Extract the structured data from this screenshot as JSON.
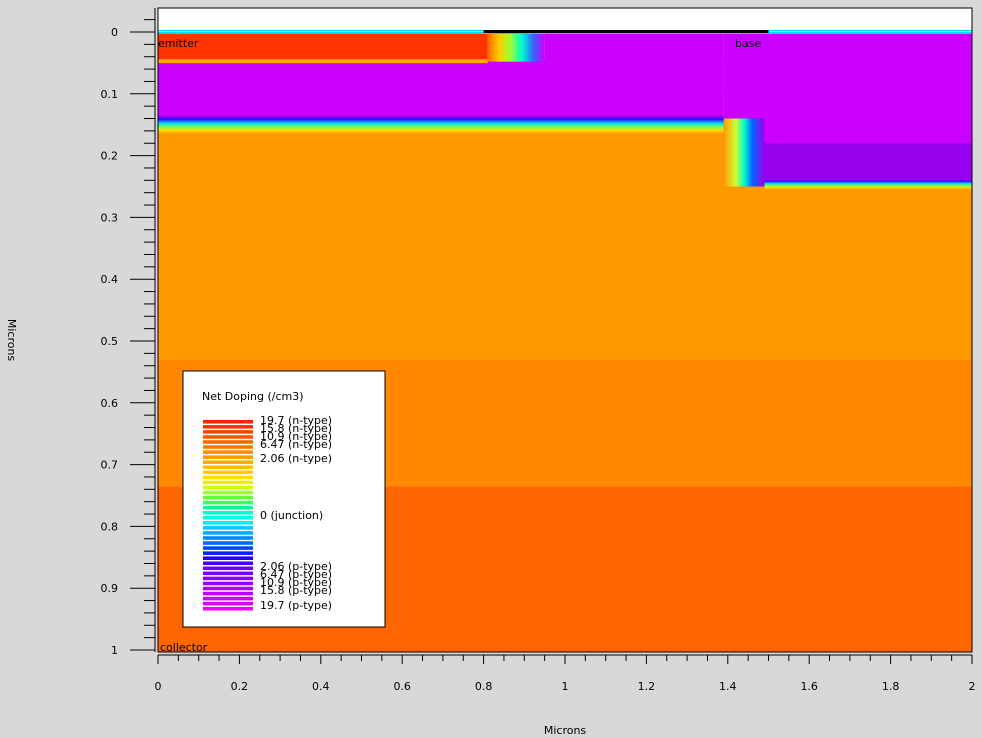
{
  "chart_data": {
    "type": "heatmap",
    "title": "",
    "xlabel": "Microns",
    "ylabel": "Microns",
    "xlim": [
      0,
      2
    ],
    "ylim": [
      1,
      0
    ],
    "x_ticks": [
      "0",
      "0.2",
      "0.4",
      "0.6",
      "0.8",
      "1",
      "1.2",
      "1.4",
      "1.6",
      "1.8",
      "2"
    ],
    "y_ticks": [
      "0",
      "0.1",
      "0.2",
      "0.3",
      "0.4",
      "0.5",
      "0.6",
      "0.7",
      "0.8",
      "0.9",
      "1"
    ],
    "region_labels": {
      "emitter": "emitter",
      "base": "base",
      "collector": "collector"
    },
    "legend": {
      "title": "Net Doping (/cm3)",
      "placement": "bottom-left",
      "entries": [
        "19.7 (n-type)",
        "15.8 (n-type)",
        "10.9 (n-type)",
        "6.47 (n-type)",
        "2.06 (n-type)",
        "0 (junction)",
        "2.06 (p-type)",
        "6.47 (p-type)",
        "10.9 (p-type)",
        "15.8 (p-type)",
        "19.7 (p-type)"
      ]
    },
    "colors": {
      "n_high": "#ff3300",
      "n_mid": "#ff6600",
      "n_low": "#ff9900",
      "junction": "#00ffcc",
      "p_low": "#0033ff",
      "p_mid": "#9900ff",
      "p_high": "#cc00ff",
      "oxide": "#ffffff",
      "background": "#d8d8d8"
    }
  }
}
